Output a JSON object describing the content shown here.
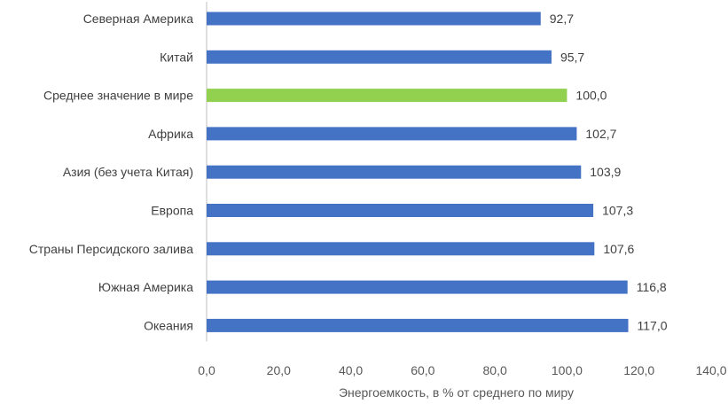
{
  "chart_data": {
    "type": "bar",
    "orientation": "horizontal",
    "categories": [
      "Северная Америка",
      "Китай",
      "Среднее значение в мире",
      "Африка",
      "Азия (без учета Китая)",
      "Европа",
      "Страны Персидского залива",
      "Южная Америка",
      "Океания"
    ],
    "values": [
      92.7,
      95.7,
      100.0,
      102.7,
      103.9,
      107.3,
      107.6,
      116.8,
      117.0
    ],
    "value_labels": [
      "92,7",
      "95,7",
      "100,0",
      "102,7",
      "103,9",
      "107,3",
      "107,6",
      "116,8",
      "117,0"
    ],
    "highlight_category": "Среднее значение в мире",
    "xlabel": "Энергоемкость, в % от среднего по миру",
    "xlim": [
      0,
      140
    ],
    "x_ticks": [
      0,
      20,
      40,
      60,
      80,
      100,
      120,
      140
    ],
    "x_tick_labels": [
      "0,0",
      "20,0",
      "40,0",
      "60,0",
      "80,0",
      "100,0",
      "120,0",
      "140,0"
    ],
    "grid": false,
    "legend": "none",
    "colors": {
      "bar": "#4472C4",
      "highlight": "#92D050"
    }
  }
}
